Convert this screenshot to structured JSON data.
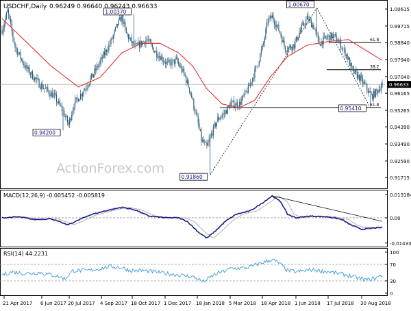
{
  "header": {
    "symbol_label": "USDCHF,Daily",
    "ohlc_text": "0.96249 0.96640 0.96243 0.96633"
  },
  "watermark": "ActionForex.com",
  "colors": {
    "candle": "#2f5f7a",
    "ma": "#e03030",
    "macd": "#1a1a8a",
    "signal": "#b0b0b0",
    "rsi": "#3a9ad9",
    "price_box": "#000000"
  },
  "chart_data": [
    {
      "type": "candlestick",
      "title": "USDCHF,Daily",
      "y_ticks": [
        "1.00615",
        "0.99715",
        "0.98840",
        "0.97940",
        "0.97040",
        "0.96165",
        "0.95265",
        "0.94390",
        "0.93490",
        "0.92590",
        "0.91715"
      ],
      "ylim": [
        0.9125,
        1.0098
      ],
      "x_ticks": [
        "21 Apr 2017",
        "6 Jun 2017",
        "20 Jul 2017",
        "4 Sep 2017",
        "18 Oct 2017",
        "1 Dec 2017",
        "18 Jan 2018",
        "5 Mar 2018",
        "18 Apr 2018",
        "1 Jun 2018",
        "17 Jul 2018",
        "30 Aug 2018"
      ],
      "last_price": "0.96633",
      "anchors": [
        [
          0,
          0.995
        ],
        [
          5,
          1.005
        ],
        [
          12,
          0.986
        ],
        [
          22,
          0.975
        ],
        [
          35,
          0.966
        ],
        [
          48,
          0.96
        ],
        [
          56,
          0.952
        ],
        [
          61,
          0.945
        ],
        [
          66,
          0.956
        ],
        [
          76,
          0.964
        ],
        [
          88,
          0.976
        ],
        [
          100,
          0.989
        ],
        [
          106,
          0.998
        ],
        [
          110,
          1.002
        ],
        [
          114,
          0.993
        ],
        [
          122,
          0.986
        ],
        [
          133,
          0.99
        ],
        [
          140,
          0.984
        ],
        [
          152,
          0.977
        ],
        [
          160,
          0.979
        ],
        [
          167,
          0.972
        ],
        [
          173,
          0.962
        ],
        [
          179,
          0.948
        ],
        [
          183,
          0.937
        ],
        [
          188,
          0.933
        ],
        [
          192,
          0.94
        ],
        [
          198,
          0.948
        ],
        [
          204,
          0.951
        ],
        [
          210,
          0.956
        ],
        [
          218,
          0.956
        ],
        [
          226,
          0.964
        ],
        [
          234,
          0.976
        ],
        [
          240,
          0.988
        ],
        [
          244,
          1.0
        ],
        [
          248,
          1.002
        ],
        [
          255,
          0.994
        ],
        [
          260,
          0.985
        ],
        [
          268,
          0.987
        ],
        [
          274,
          0.995
        ],
        [
          280,
          1.001
        ],
        [
          286,
          0.997
        ],
        [
          291,
          0.988
        ],
        [
          298,
          0.991
        ],
        [
          304,
          0.992
        ],
        [
          310,
          0.988
        ],
        [
          316,
          0.982
        ],
        [
          322,
          0.973
        ],
        [
          328,
          0.97
        ],
        [
          334,
          0.965
        ],
        [
          339,
          0.96
        ],
        [
          344,
          0.9625
        ],
        [
          349,
          0.9664
        ]
      ],
      "moving_average": [
        [
          0,
          1.001
        ],
        [
          20,
          0.99
        ],
        [
          45,
          0.976
        ],
        [
          70,
          0.965
        ],
        [
          90,
          0.97
        ],
        [
          110,
          0.983
        ],
        [
          128,
          0.988
        ],
        [
          145,
          0.988
        ],
        [
          162,
          0.983
        ],
        [
          175,
          0.976
        ],
        [
          188,
          0.964
        ],
        [
          202,
          0.956
        ],
        [
          218,
          0.954
        ],
        [
          232,
          0.958
        ],
        [
          246,
          0.97
        ],
        [
          262,
          0.981
        ],
        [
          280,
          0.987
        ],
        [
          300,
          0.989
        ],
        [
          318,
          0.99
        ],
        [
          332,
          0.985
        ],
        [
          349,
          0.979
        ]
      ],
      "levels": [
        {
          "label": "61.8",
          "value": 0.9884
        },
        {
          "label": "38.2",
          "value": 0.9741
        },
        {
          "label": "61.8",
          "value": 0.9541
        }
      ],
      "price_labels": [
        {
          "label": "1.00670",
          "bar": 289,
          "value": 1.0067
        },
        {
          "label": "1.00370",
          "bar": 121,
          "value": 1.0037
        },
        {
          "label": "0.94200",
          "bar": 56,
          "value": 0.942
        },
        {
          "label": "0.91860",
          "bar": 191,
          "value": 0.9186
        },
        {
          "label": "0.95410",
          "bar": 338,
          "value": 0.9541
        }
      ],
      "trendlines": [
        {
          "from": [
            191,
            0.9186
          ],
          "to": [
            289,
            1.0067
          ]
        },
        {
          "from": [
            289,
            1.0067
          ],
          "to": [
            338,
            0.9541
          ]
        }
      ]
    },
    {
      "type": "line",
      "title": "MACD(12,26,9) -0.005452 -0.005819",
      "y_ticks": [
        "0.013184",
        "0.00",
        "-0.014339"
      ],
      "ylim": [
        -0.0152,
        0.014
      ],
      "series": [
        {
          "values_anchor": [
            [
              0,
              0.0
            ],
            [
              15,
              0.0005
            ],
            [
              30,
              -0.001
            ],
            [
              45,
              -0.0005
            ],
            [
              60,
              -0.004
            ],
            [
              66,
              -0.0025
            ],
            [
              80,
              0.0015
            ],
            [
              95,
              0.004
            ],
            [
              110,
              0.006
            ],
            [
              122,
              0.0045
            ],
            [
              135,
              0.001
            ],
            [
              150,
              0.0
            ],
            [
              162,
              0.0
            ],
            [
              170,
              -0.002
            ],
            [
              180,
              -0.008
            ],
            [
              188,
              -0.0115
            ],
            [
              195,
              -0.008
            ],
            [
              205,
              -0.002
            ],
            [
              215,
              0.002
            ],
            [
              228,
              0.004
            ],
            [
              238,
              0.008
            ],
            [
              248,
              0.0125
            ],
            [
              256,
              0.009
            ],
            [
              262,
              0.002
            ],
            [
              270,
              0.0
            ],
            [
              282,
              0.001
            ],
            [
              300,
              0.0005
            ],
            [
              312,
              -0.001
            ],
            [
              320,
              -0.004
            ],
            [
              330,
              -0.0065
            ],
            [
              340,
              -0.0058
            ],
            [
              349,
              -0.0055
            ]
          ]
        }
      ],
      "zero_line": 0,
      "trendline": {
        "from": [
          248,
          0.0125
        ],
        "to": [
          349,
          -0.002
        ]
      }
    },
    {
      "type": "line",
      "title": "RSI(14) 44.2231",
      "y_ticks": [
        "100",
        "70",
        "30",
        "0"
      ],
      "ylim": [
        0,
        100
      ],
      "guide_levels": [
        70,
        30
      ],
      "series": [
        {
          "values_anchor": [
            [
              0,
              45
            ],
            [
              10,
              52
            ],
            [
              20,
              48
            ],
            [
              35,
              50
            ],
            [
              50,
              42
            ],
            [
              58,
              35
            ],
            [
              65,
              55
            ],
            [
              80,
              55
            ],
            [
              100,
              65
            ],
            [
              110,
              62
            ],
            [
              118,
              55
            ],
            [
              130,
              55
            ],
            [
              145,
              50
            ],
            [
              160,
              45
            ],
            [
              175,
              40
            ],
            [
              185,
              28
            ],
            [
              195,
              45
            ],
            [
              210,
              60
            ],
            [
              225,
              62
            ],
            [
              240,
              75
            ],
            [
              248,
              82
            ],
            [
              255,
              72
            ],
            [
              262,
              55
            ],
            [
              270,
              52
            ],
            [
              285,
              57
            ],
            [
              300,
              52
            ],
            [
              315,
              45
            ],
            [
              325,
              38
            ],
            [
              335,
              32
            ],
            [
              342,
              36
            ],
            [
              349,
              44
            ]
          ]
        }
      ]
    }
  ]
}
